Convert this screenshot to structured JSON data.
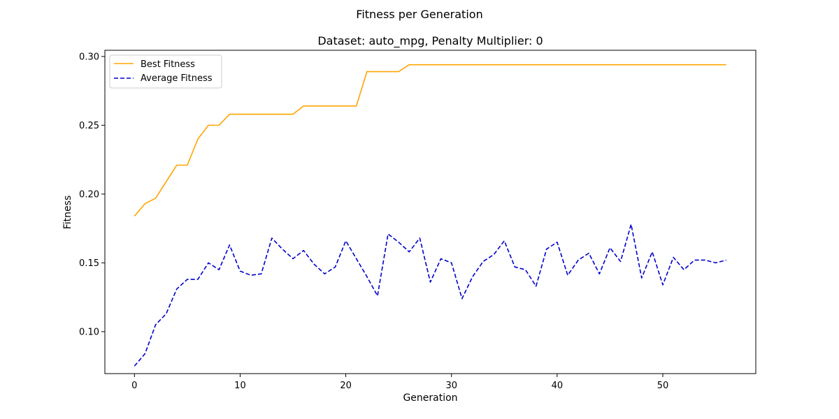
{
  "chart_data": {
    "type": "line",
    "suptitle": "Fitness per Generation",
    "title": "Dataset: auto_mpg, Penalty Multiplier: 0",
    "xlabel": "Generation",
    "ylabel": "Fitness",
    "xlim": [
      -2.8,
      58.8
    ],
    "ylim": [
      0.0695,
      0.3045
    ],
    "xticks": [
      0,
      10,
      20,
      30,
      40,
      50
    ],
    "yticks": [
      0.1,
      0.15,
      0.2,
      0.25,
      0.3
    ],
    "grid": false,
    "legend_position": "top-left",
    "x": [
      0,
      1,
      2,
      3,
      4,
      5,
      6,
      7,
      8,
      9,
      10,
      11,
      12,
      13,
      14,
      15,
      16,
      17,
      18,
      19,
      20,
      21,
      22,
      23,
      24,
      25,
      26,
      27,
      28,
      29,
      30,
      31,
      32,
      33,
      34,
      35,
      36,
      37,
      38,
      39,
      40,
      41,
      42,
      43,
      44,
      45,
      46,
      47,
      48,
      49,
      50,
      51,
      52,
      53,
      54,
      55,
      56
    ],
    "series": [
      {
        "name": "Best Fitness",
        "color": "#ffa500",
        "style": "solid",
        "values": [
          0.184,
          0.193,
          0.197,
          0.209,
          0.221,
          0.221,
          0.24,
          0.25,
          0.25,
          0.258,
          0.258,
          0.258,
          0.258,
          0.258,
          0.258,
          0.258,
          0.264,
          0.264,
          0.264,
          0.264,
          0.264,
          0.264,
          0.289,
          0.289,
          0.289,
          0.289,
          0.294,
          0.294,
          0.294,
          0.294,
          0.294,
          0.294,
          0.294,
          0.294,
          0.294,
          0.294,
          0.294,
          0.294,
          0.294,
          0.294,
          0.294,
          0.294,
          0.294,
          0.294,
          0.294,
          0.294,
          0.294,
          0.294,
          0.294,
          0.294,
          0.294,
          0.294,
          0.294,
          0.294,
          0.294,
          0.294,
          0.294
        ]
      },
      {
        "name": "Average Fitness",
        "color": "#0000cc",
        "style": "dashed",
        "values": [
          0.075,
          0.084,
          0.105,
          0.113,
          0.131,
          0.138,
          0.138,
          0.15,
          0.145,
          0.163,
          0.144,
          0.141,
          0.142,
          0.168,
          0.16,
          0.153,
          0.159,
          0.149,
          0.142,
          0.147,
          0.166,
          0.153,
          0.14,
          0.126,
          0.171,
          0.165,
          0.158,
          0.168,
          0.136,
          0.153,
          0.15,
          0.124,
          0.14,
          0.151,
          0.156,
          0.166,
          0.147,
          0.145,
          0.133,
          0.16,
          0.165,
          0.141,
          0.152,
          0.157,
          0.142,
          0.161,
          0.151,
          0.178,
          0.139,
          0.158,
          0.134,
          0.154,
          0.145,
          0.152,
          0.152,
          0.15,
          0.152
        ]
      }
    ]
  }
}
